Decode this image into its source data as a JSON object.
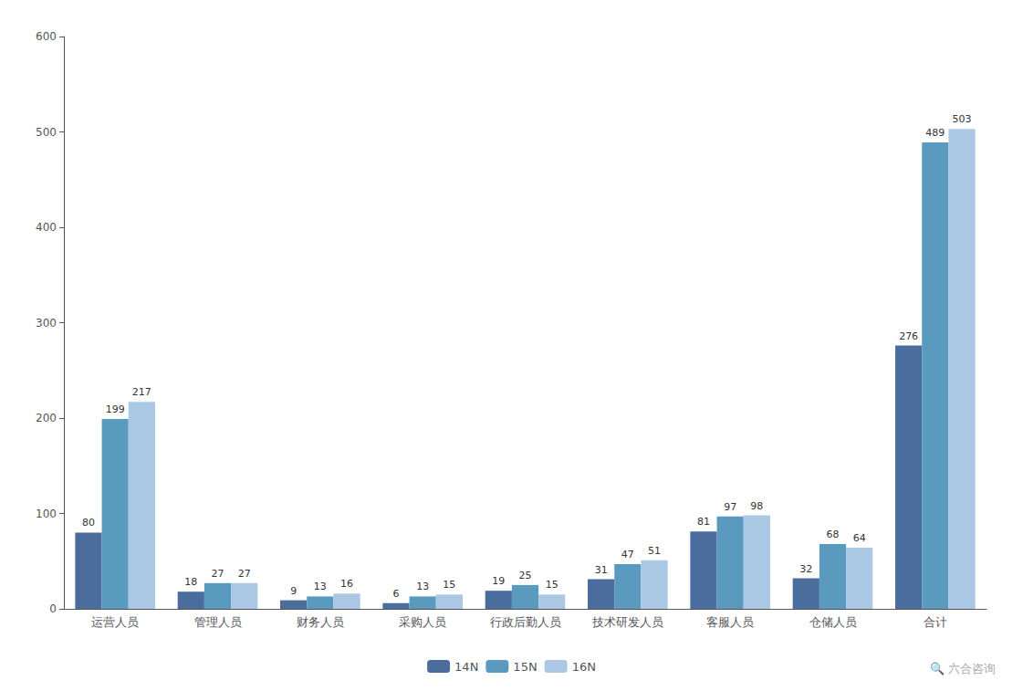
{
  "chart_data": {
    "type": "bar",
    "categories": [
      "运营人员",
      "管理人员",
      "财务人员",
      "采购人员",
      "行政后勤人员",
      "技术研发人员",
      "客服人员",
      "仓储人员",
      "合计"
    ],
    "series": [
      {
        "name": "14N",
        "color": "#4a6d9e",
        "values": [
          80,
          18,
          9,
          6,
          19,
          31,
          81,
          32,
          276
        ]
      },
      {
        "name": "15N",
        "color": "#5b9abf",
        "values": [
          199,
          27,
          13,
          13,
          25,
          47,
          97,
          68,
          489
        ]
      },
      {
        "name": "16N",
        "color": "#aac8e4",
        "values": [
          217,
          27,
          16,
          15,
          15,
          51,
          98,
          64,
          503
        ]
      }
    ],
    "ylim": [
      0,
      600
    ],
    "yticks": [
      0,
      100,
      200,
      300,
      400,
      500,
      600
    ],
    "grid": false,
    "legend": "bottom",
    "data_labels": true,
    "annotations": [
      "🔍 六合咨询"
    ]
  }
}
